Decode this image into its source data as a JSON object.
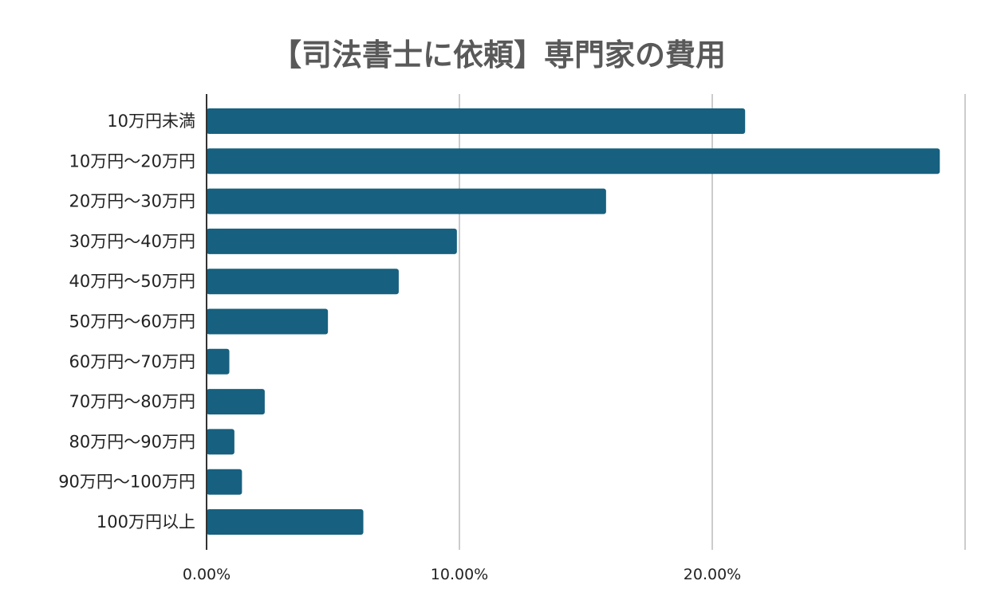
{
  "chart_data": {
    "type": "bar",
    "orientation": "horizontal",
    "title": "【司法書士に依頼】専門家の費用",
    "categories": [
      "10万円未満",
      "10万円～20万円",
      "20万円～30万円",
      "30万円～40万円",
      "40万円～50万円",
      "50万円～60万円",
      "60万円～70万円",
      "70万円～80万円",
      "80万円～90万円",
      "90万円～100万円",
      "100万円以上"
    ],
    "values": [
      21.3,
      29.0,
      15.8,
      9.9,
      7.6,
      4.8,
      0.9,
      2.3,
      1.1,
      1.4,
      6.2
    ],
    "xlim": [
      0,
      30
    ],
    "x_ticks": [
      "0.00%",
      "10.00%",
      "20.00%"
    ],
    "grid": true,
    "colors": {
      "bar": "#17607f",
      "axis": "#333333",
      "grid": "#cccccc"
    }
  }
}
